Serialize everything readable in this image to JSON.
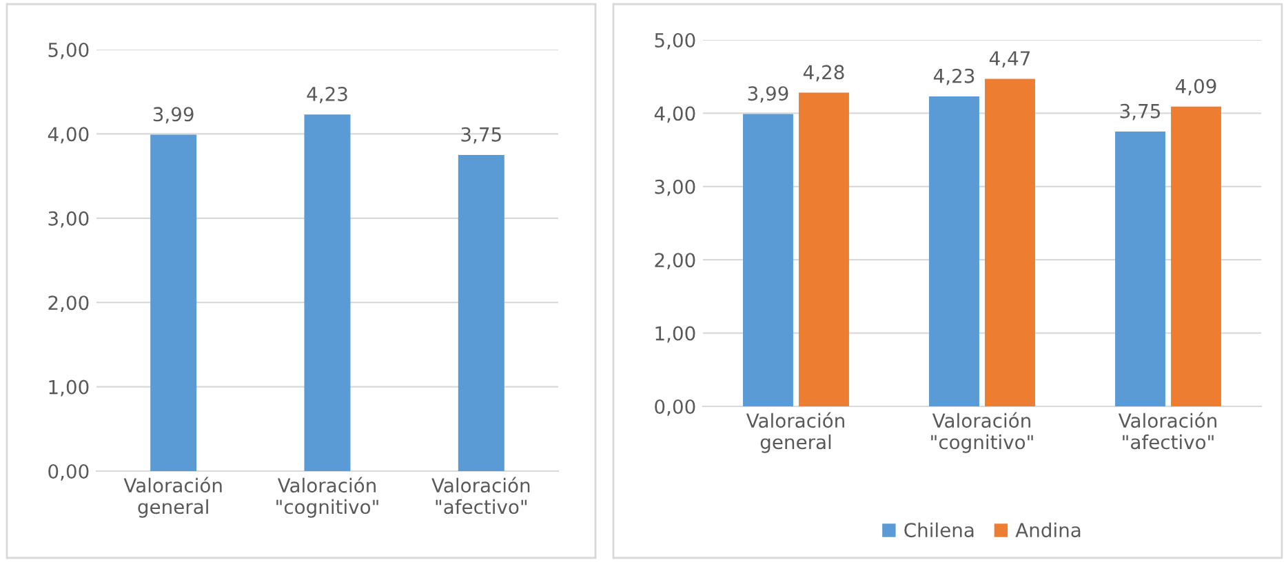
{
  "chart_data": [
    {
      "type": "bar",
      "categories": [
        "Valoración general",
        "Valoración \"cognitivo\"",
        "Valoración \"afectivo\""
      ],
      "ylim": [
        0,
        5
      ],
      "yticks": [
        {
          "value": 0,
          "label": "0,00"
        },
        {
          "value": 1,
          "label": "1,00"
        },
        {
          "value": 2,
          "label": "2,00"
        },
        {
          "value": 3,
          "label": "3,00"
        },
        {
          "value": 4,
          "label": "4,00"
        },
        {
          "value": 5,
          "label": "5,00"
        }
      ],
      "grid": "y",
      "series": [
        {
          "color": "#5b9bd5",
          "values": [
            3.99,
            4.23,
            3.75
          ],
          "value_labels": [
            "3,99",
            "4,23",
            "3,75"
          ]
        }
      ]
    },
    {
      "type": "bar",
      "categories": [
        "Valoración general",
        "Valoración \"cognitivo\"",
        "Valoración \"afectivo\""
      ],
      "ylim": [
        0,
        5
      ],
      "yticks": [
        {
          "value": 0,
          "label": "0,00"
        },
        {
          "value": 1,
          "label": "1,00"
        },
        {
          "value": 2,
          "label": "2,00"
        },
        {
          "value": 3,
          "label": "3,00"
        },
        {
          "value": 4,
          "label": "4,00"
        },
        {
          "value": 5,
          "label": "5,00"
        }
      ],
      "grid": "y",
      "legend": "bottom",
      "series": [
        {
          "name": "Chilena",
          "color": "#5b9bd5",
          "values": [
            3.99,
            4.23,
            3.75
          ],
          "value_labels": [
            "3,99",
            "4,23",
            "3,75"
          ]
        },
        {
          "name": "Andina",
          "color": "#ed7d31",
          "values": [
            4.28,
            4.47,
            4.09
          ],
          "value_labels": [
            "4,28",
            "4,47",
            "4,09"
          ]
        }
      ]
    }
  ]
}
